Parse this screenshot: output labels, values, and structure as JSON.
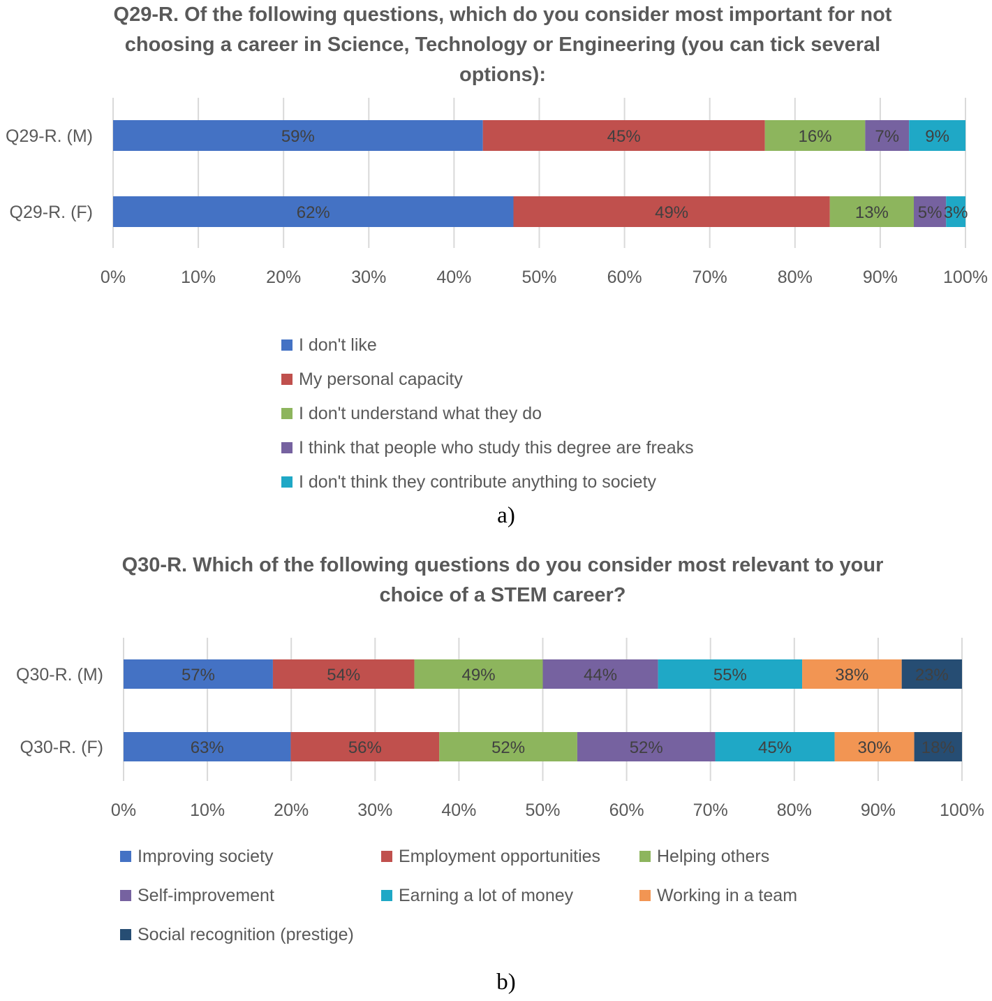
{
  "chart_data": [
    {
      "type": "bar",
      "orientation": "horizontal",
      "stacked": "percent",
      "title": "Q29-R. Of the following questions, which do you consider most important for not choosing a career in Science, Technology or Engineering (you can tick several options):",
      "caption": "a)",
      "categories": [
        "Q29-R. (M)",
        "Q29-R. (F)"
      ],
      "series": [
        {
          "name": "I don't like",
          "color": "#4472C4",
          "values": [
            59,
            62
          ],
          "labels": [
            "59%",
            "62%"
          ]
        },
        {
          "name": "My personal capacity",
          "color": "#C0504D",
          "values": [
            45,
            49
          ],
          "labels": [
            "45%",
            "49%"
          ]
        },
        {
          "name": "I don't understand what they do",
          "color": "#8DB55D",
          "values": [
            16,
            13
          ],
          "labels": [
            "16%",
            "13%"
          ]
        },
        {
          "name": "I think that people who study this degree are freaks",
          "color": "#7662A0",
          "values": [
            7,
            5
          ],
          "labels": [
            "7%",
            "5%"
          ]
        },
        {
          "name": "I don't think they contribute anything to society",
          "color": "#1FA8C6",
          "values": [
            9,
            3
          ],
          "labels": [
            "9%",
            "3%"
          ]
        }
      ],
      "xlim": [
        0,
        100
      ],
      "ticks": [
        "0%",
        "10%",
        "20%",
        "30%",
        "40%",
        "50%",
        "60%",
        "70%",
        "80%",
        "90%",
        "100%"
      ],
      "grid": true,
      "legend": "bottom"
    },
    {
      "type": "bar",
      "orientation": "horizontal",
      "stacked": "percent",
      "title": "Q30-R. Which of the following questions do you consider most relevant to your choice of a STEM career?",
      "caption": "b)",
      "categories": [
        "Q30-R. (M)",
        "Q30-R. (F)"
      ],
      "series": [
        {
          "name": "Improving society",
          "color": "#4472C4",
          "values": [
            57,
            63
          ],
          "labels": [
            "57%",
            "63%"
          ]
        },
        {
          "name": "Employment opportunities",
          "color": "#C0504D",
          "values": [
            54,
            56
          ],
          "labels": [
            "54%",
            "56%"
          ]
        },
        {
          "name": "Helping others",
          "color": "#8DB55D",
          "values": [
            49,
            52
          ],
          "labels": [
            "49%",
            "52%"
          ]
        },
        {
          "name": "Self-improvement",
          "color": "#7662A0",
          "values": [
            44,
            52
          ],
          "labels": [
            "44%",
            "52%"
          ]
        },
        {
          "name": "Earning a lot of money",
          "color": "#1FA8C6",
          "values": [
            55,
            45
          ],
          "labels": [
            "55%",
            "45%"
          ]
        },
        {
          "name": "Working in a team",
          "color": "#F29553",
          "values": [
            38,
            30
          ],
          "labels": [
            "38%",
            "30%"
          ]
        },
        {
          "name": "Social recognition (prestige)",
          "color": "#264D73",
          "values": [
            23,
            18
          ],
          "labels": [
            "23%",
            "18%"
          ]
        }
      ],
      "xlim": [
        0,
        100
      ],
      "ticks": [
        "0%",
        "10%",
        "20%",
        "30%",
        "40%",
        "50%",
        "60%",
        "70%",
        "80%",
        "90%",
        "100%"
      ],
      "grid": true,
      "legend": "bottom"
    }
  ]
}
